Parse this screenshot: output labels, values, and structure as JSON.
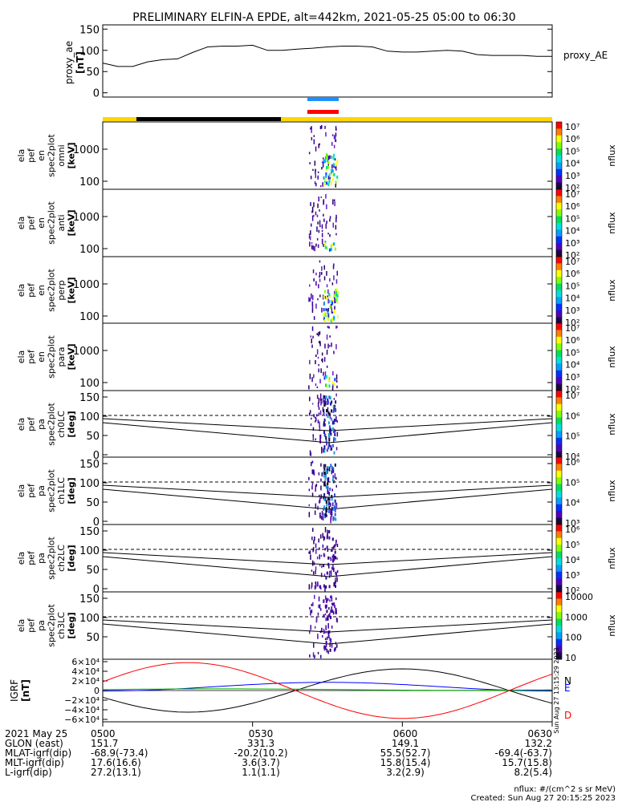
{
  "title": "PRELIMINARY ELFIN-A EPDE, alt=442km, 2021-05-25 05:00 to 06:30",
  "colors": {
    "blue_bar": "#1e8fff",
    "red_bar": "#ff0000",
    "sunlit": "#ffd700",
    "eclipse": "#000000",
    "bx": "#000000",
    "by": "#0000ff",
    "bz": "#00b000",
    "bd": "#ff0000"
  },
  "colorbars": [
    {
      "labels": [
        "10⁷",
        "10⁶",
        "10⁵",
        "10⁴",
        "10³",
        "10²"
      ],
      "title": "nflux"
    },
    {
      "labels": [
        "10⁷",
        "10⁶",
        "10⁵",
        "10⁴",
        "10³",
        "10²"
      ],
      "title": "nflux"
    },
    {
      "labels": [
        "10⁷",
        "10⁶",
        "10⁵",
        "10⁴",
        "10³",
        "10²"
      ],
      "title": "nflux"
    },
    {
      "labels": [
        "10⁷",
        "10⁶",
        "10⁵",
        "10⁴",
        "10³",
        "10²"
      ],
      "title": "nflux"
    },
    {
      "labels": [
        "10⁷",
        "10⁶",
        "10⁵",
        "10⁴"
      ],
      "title": "nflux"
    },
    {
      "labels": [
        "10⁶",
        "10⁵",
        "10⁴",
        "10³"
      ],
      "title": "nflux"
    },
    {
      "labels": [
        "10⁶",
        "10⁵",
        "10⁴",
        "10³",
        "10²"
      ],
      "title": "nflux"
    },
    {
      "labels": [
        "10000",
        "1000",
        "100",
        "10"
      ],
      "title": "nflux"
    }
  ],
  "chart_data": [
    {
      "type": "line",
      "ylabel": [
        "proxy_ae",
        "[nT]"
      ],
      "legend": "proxy_AE",
      "yticks": [
        "150",
        "100",
        "50",
        "0"
      ],
      "ylim": [
        -10,
        160
      ],
      "x_minutes": [
        0,
        3,
        6,
        9,
        12,
        15,
        18,
        21,
        24,
        27,
        30,
        33,
        36,
        39,
        42,
        45,
        48,
        51,
        54,
        57,
        60,
        63,
        66,
        69,
        72,
        75,
        78,
        81,
        84,
        87,
        90
      ],
      "values": [
        70,
        62,
        62,
        73,
        78,
        80,
        95,
        108,
        110,
        110,
        112,
        100,
        100,
        103,
        105,
        108,
        110,
        110,
        108,
        98,
        96,
        96,
        98,
        100,
        98,
        90,
        88,
        88,
        88,
        86,
        86
      ]
    },
    {
      "type": "heatmap",
      "ylabel": [
        "ela",
        "pef",
        "en",
        "spec2plot",
        "omni",
        "[keV]"
      ],
      "yticks": [
        "1000",
        "100"
      ]
    },
    {
      "type": "heatmap",
      "ylabel": [
        "ela",
        "pef",
        "en",
        "spec2plot",
        "anti",
        "[keV]"
      ],
      "yticks": [
        "1000",
        "100"
      ]
    },
    {
      "type": "heatmap",
      "ylabel": [
        "ela",
        "pef",
        "en",
        "spec2plot",
        "perp",
        "[keV]"
      ],
      "yticks": [
        "1000",
        "100"
      ]
    },
    {
      "type": "heatmap",
      "ylabel": [
        "ela",
        "pef",
        "en",
        "spec2plot",
        "para",
        "[keV]"
      ],
      "yticks": [
        "1000",
        "100"
      ]
    },
    {
      "type": "heatmap",
      "ylabel": [
        "ela",
        "pef",
        "pa",
        "spec2plot",
        "ch0LC",
        "[deg]"
      ],
      "yticks": [
        "150",
        "100",
        "50",
        "0"
      ]
    },
    {
      "type": "heatmap",
      "ylabel": [
        "ela",
        "pef",
        "pa",
        "spec2plot",
        "ch1LC",
        "[deg]"
      ],
      "yticks": [
        "150",
        "100",
        "50",
        "0"
      ]
    },
    {
      "type": "heatmap",
      "ylabel": [
        "ela",
        "pef",
        "pa",
        "spec2plot",
        "ch2LC",
        "[deg]"
      ],
      "yticks": [
        "150",
        "100",
        "50",
        "0"
      ]
    },
    {
      "type": "heatmap",
      "ylabel": [
        "ela",
        "pef",
        "pa",
        "spec2plot",
        "ch3LC",
        "[deg]"
      ],
      "yticks": [
        "150",
        "100",
        "50"
      ]
    },
    {
      "type": "line",
      "ylabel": [
        "IGRF",
        "[nT]"
      ],
      "yticks": [
        "6×10⁴",
        "4×10⁴",
        "2×10⁴",
        "0",
        "−2×10⁴",
        "−4×10⁴",
        "−6×10⁴"
      ],
      "ylim": [
        -65000,
        65000
      ],
      "series": [
        {
          "name": "N",
          "color_key": "bx"
        },
        {
          "name": "E",
          "color_key": "by"
        },
        {
          "name": "",
          "color_key": "bz"
        },
        {
          "name": "D",
          "color_key": "bd"
        }
      ],
      "side_text": "Sun Aug 27 13:15:29 2023"
    }
  ],
  "xaxis": {
    "labels": [
      "2021 May 25",
      "GLON (east)",
      "MLAT-igrf(dip)",
      "MLT-igrf(dip)",
      "L-igrf(dip)"
    ],
    "times": [
      "0500",
      "0530",
      "0600",
      "0630"
    ],
    "columns": [
      [
        "0500",
        "151.7",
        "-68.9(-73.4)",
        "17.6(16.6)",
        "27.2(13.1)"
      ],
      [
        "0530",
        "331.3",
        "-20.2(10.2)",
        "3.6(3.7)",
        "1.1(1.1)"
      ],
      [
        "0600",
        "149.1",
        "55.5(52.7)",
        "15.8(15.4)",
        "3.2(2.9)"
      ],
      [
        "0630",
        "132.2",
        "-69.4(-63.7)",
        "15.7(15.8)",
        "8.2(5.4)"
      ]
    ]
  },
  "footer": {
    "units": "nflux: #/(cm^2 s sr MeV)",
    "created": "Created: Sun Aug 27 20:15:25 2023"
  }
}
